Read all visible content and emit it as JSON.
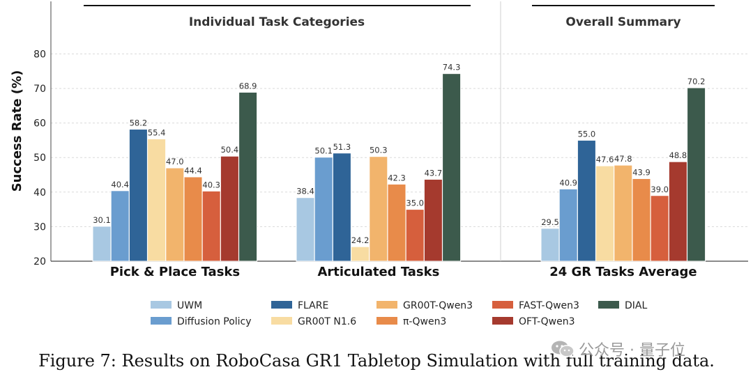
{
  "chart_data": {
    "type": "bar",
    "ylabel": "Success Rate (%)",
    "ylim": [
      20,
      82
    ],
    "yticks": [
      20,
      30,
      40,
      50,
      60,
      70,
      80
    ],
    "grid": "horizontal dashed",
    "panels": [
      {
        "title": "Individual Task Categories",
        "categories": [
          "Pick & Place Tasks",
          "Articulated Tasks"
        ]
      },
      {
        "title": "Overall Summary",
        "categories": [
          "24 GR Tasks Average"
        ]
      }
    ],
    "categories": [
      "Pick & Place Tasks",
      "Articulated Tasks",
      "24 GR Tasks Average"
    ],
    "series": [
      {
        "name": "UWM",
        "color": "#a8c8e2",
        "values": [
          30.1,
          38.4,
          29.5
        ]
      },
      {
        "name": "Diffusion Policy",
        "color": "#6a9dcf",
        "values": [
          40.4,
          50.1,
          40.9
        ]
      },
      {
        "name": "FLARE",
        "color": "#2f6497",
        "values": [
          58.2,
          51.3,
          55.0
        ]
      },
      {
        "name": "GR00T N1.6",
        "color": "#f8dca2",
        "values": [
          55.4,
          24.2,
          47.6
        ]
      },
      {
        "name": "GR00T-Qwen3",
        "color": "#f2b46c",
        "values": [
          47.0,
          50.3,
          47.8
        ]
      },
      {
        "name": "π-Qwen3",
        "color": "#e88b4a",
        "values": [
          44.4,
          42.3,
          43.9
        ]
      },
      {
        "name": "FAST-Qwen3",
        "color": "#d65f3d",
        "values": [
          40.3,
          35.0,
          39.0
        ]
      },
      {
        "name": "OFT-Qwen3",
        "color": "#a53a2e",
        "values": [
          50.4,
          43.7,
          48.8
        ]
      },
      {
        "name": "DIAL",
        "color": "#3c5a4c",
        "values": [
          68.9,
          74.3,
          70.2
        ]
      }
    ],
    "legend_position": "bottom",
    "value_labels": true
  },
  "caption": "Figure 7:  Results on RoboCasa GR1 Tabletop Simulation with full training data.",
  "watermark_text": "公众号 · 量子位"
}
